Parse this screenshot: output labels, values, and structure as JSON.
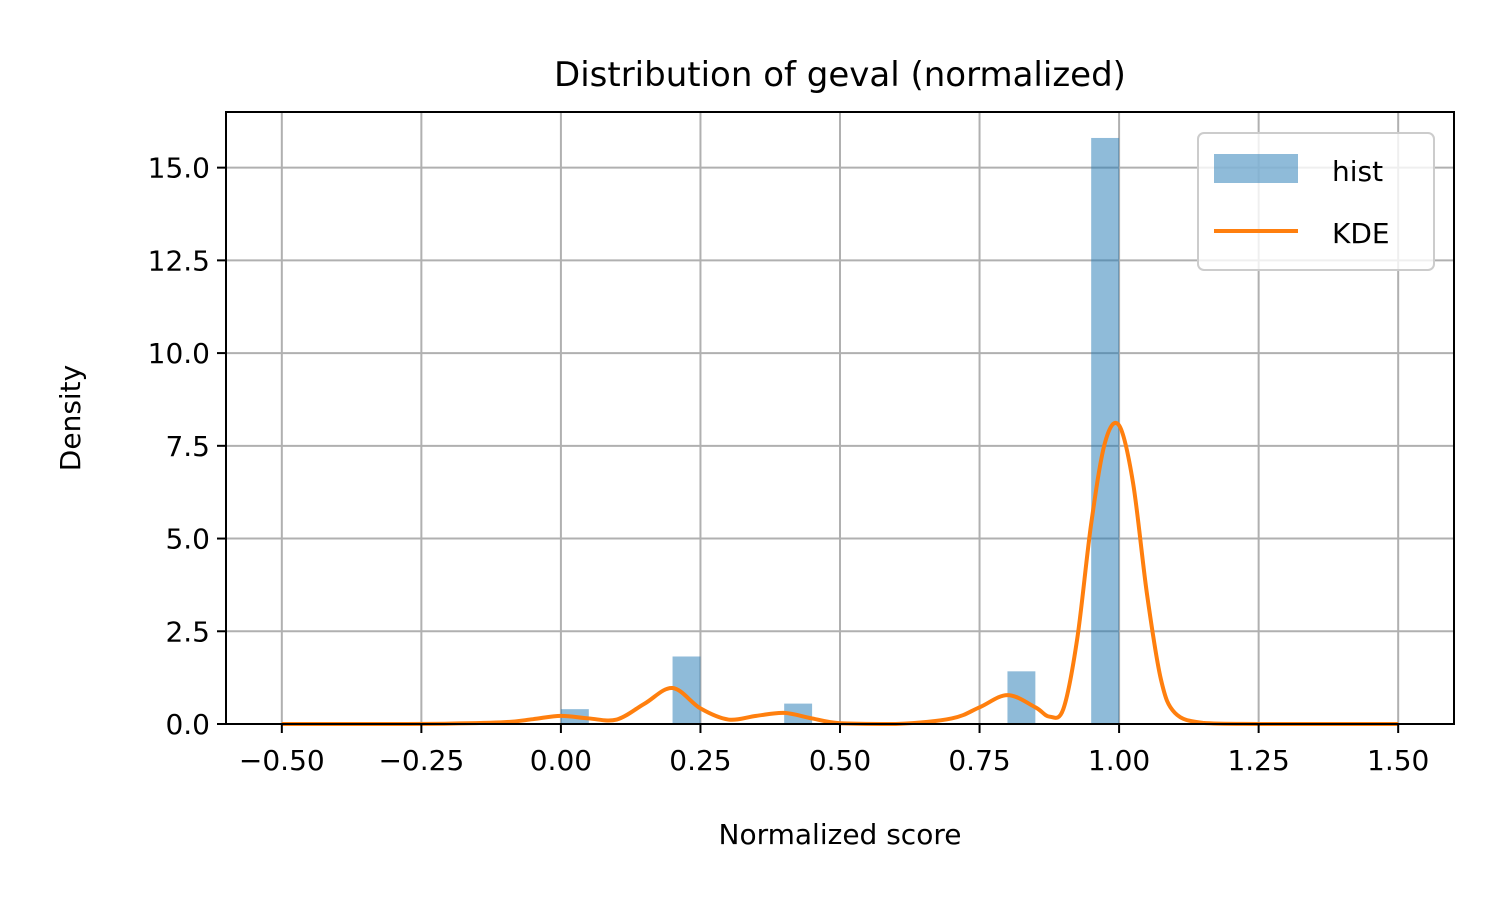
{
  "chart_data": {
    "type": "bar",
    "title": "Distribution of geval (normalized)",
    "xlabel": "Normalized score",
    "ylabel": "Density",
    "xlim": [
      -0.6,
      1.6
    ],
    "ylim": [
      0,
      16.5
    ],
    "xticks": [
      -0.5,
      -0.25,
      0.0,
      0.25,
      0.5,
      0.75,
      1.0,
      1.25,
      1.5
    ],
    "xtick_labels": [
      "−0.50",
      "−0.25",
      "0.00",
      "0.25",
      "0.50",
      "0.75",
      "1.00",
      "1.25",
      "1.50"
    ],
    "yticks": [
      0.0,
      2.5,
      5.0,
      7.5,
      10.0,
      12.5,
      15.0
    ],
    "ytick_labels": [
      "0.0",
      "2.5",
      "5.0",
      "7.5",
      "10.0",
      "12.5",
      "15.0"
    ],
    "grid": true,
    "legend_position": "top-right",
    "series": [
      {
        "name": "hist",
        "kind": "bar",
        "color": "#1f77b4",
        "opacity": 0.5,
        "bin_width": 0.05,
        "bins": [
          {
            "x_start": 0.0,
            "value": 0.4
          },
          {
            "x_start": 0.2,
            "value": 1.82
          },
          {
            "x_start": 0.4,
            "value": 0.55
          },
          {
            "x_start": 0.8,
            "value": 1.42
          },
          {
            "x_start": 0.95,
            "value": 15.8
          }
        ]
      },
      {
        "name": "KDE",
        "kind": "line",
        "color": "#ff7f0e",
        "x": [
          -0.5,
          -0.3,
          -0.2,
          -0.1,
          -0.05,
          0.0,
          0.05,
          0.1,
          0.15,
          0.2,
          0.25,
          0.3,
          0.35,
          0.4,
          0.45,
          0.5,
          0.6,
          0.7,
          0.75,
          0.8,
          0.85,
          0.875,
          0.9,
          0.925,
          0.95,
          0.975,
          1.0,
          1.025,
          1.05,
          1.075,
          1.1,
          1.15,
          1.25,
          1.5
        ],
        "y": [
          0.0,
          0.0,
          0.01,
          0.05,
          0.13,
          0.22,
          0.15,
          0.12,
          0.55,
          0.97,
          0.42,
          0.12,
          0.22,
          0.3,
          0.15,
          0.02,
          0.0,
          0.15,
          0.45,
          0.78,
          0.45,
          0.2,
          0.4,
          2.3,
          5.4,
          7.6,
          8.05,
          6.5,
          3.5,
          1.2,
          0.3,
          0.03,
          0.0,
          0.0
        ]
      }
    ]
  }
}
